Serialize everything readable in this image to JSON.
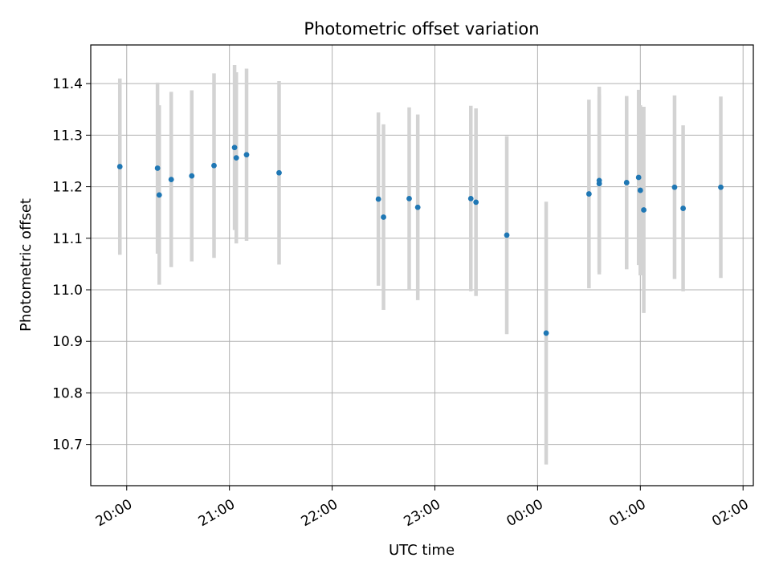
{
  "chart_data": {
    "type": "scatter",
    "title": "Photometric offset variation",
    "xlabel": "UTC time",
    "ylabel": "Photometric offset",
    "grid": true,
    "x_ticks": [
      "20:00",
      "21:00",
      "22:00",
      "23:00",
      "00:00",
      "01:00",
      "02:00"
    ],
    "y_ticks": [
      "10.7",
      "10.8",
      "10.9",
      "11.0",
      "11.1",
      "11.2",
      "11.3",
      "11.4"
    ],
    "xlim": [
      "19:39",
      "02:06"
    ],
    "ylim": [
      10.62,
      11.475
    ],
    "colors": {
      "point": "#1f77b4",
      "errorbar": "#d3d3d3",
      "grid": "#b0b0b0"
    },
    "points": [
      {
        "x": "19:56",
        "y": 11.239,
        "err": 0.171
      },
      {
        "x": "20:18",
        "y": 11.236,
        "err": 0.166
      },
      {
        "x": "20:19",
        "y": 11.184,
        "err": 0.174
      },
      {
        "x": "20:26",
        "y": 11.214,
        "err": 0.17
      },
      {
        "x": "20:38",
        "y": 11.221,
        "err": 0.166
      },
      {
        "x": "20:51",
        "y": 11.241,
        "err": 0.179
      },
      {
        "x": "21:03",
        "y": 11.276,
        "err": 0.16
      },
      {
        "x": "21:04",
        "y": 11.256,
        "err": 0.166
      },
      {
        "x": "21:10",
        "y": 11.262,
        "err": 0.167
      },
      {
        "x": "21:29",
        "y": 11.227,
        "err": 0.178
      },
      {
        "x": "22:27",
        "y": 11.176,
        "err": 0.168
      },
      {
        "x": "22:30",
        "y": 11.141,
        "err": 0.18
      },
      {
        "x": "22:45",
        "y": 11.177,
        "err": 0.177
      },
      {
        "x": "22:50",
        "y": 11.16,
        "err": 0.18
      },
      {
        "x": "23:21",
        "y": 11.177,
        "err": 0.18
      },
      {
        "x": "23:24",
        "y": 11.17,
        "err": 0.182
      },
      {
        "x": "23:42",
        "y": 11.106,
        "err": 0.192
      },
      {
        "x": "00:05",
        "y": 10.916,
        "err": 0.255
      },
      {
        "x": "00:30",
        "y": 11.186,
        "err": 0.183
      },
      {
        "x": "00:36",
        "y": 11.206,
        "err": 0.172
      },
      {
        "x": "00:36",
        "y": 11.212,
        "err": 0.182
      },
      {
        "x": "00:52",
        "y": 11.208,
        "err": 0.168
      },
      {
        "x": "00:59",
        "y": 11.218,
        "err": 0.17
      },
      {
        "x": "01:00",
        "y": 11.193,
        "err": 0.165
      },
      {
        "x": "01:02",
        "y": 11.155,
        "err": 0.2
      },
      {
        "x": "01:20",
        "y": 11.199,
        "err": 0.178
      },
      {
        "x": "01:25",
        "y": 11.158,
        "err": 0.161
      },
      {
        "x": "01:47",
        "y": 11.199,
        "err": 0.176
      }
    ]
  }
}
